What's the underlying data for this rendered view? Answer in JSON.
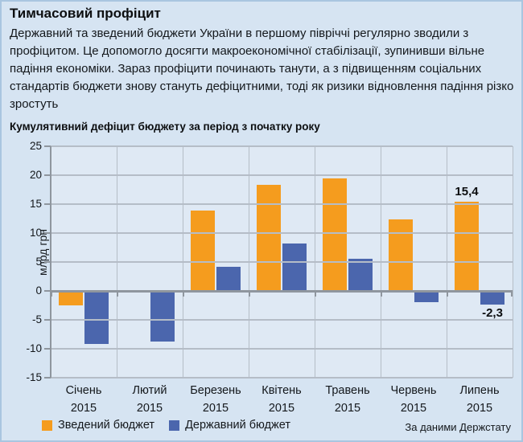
{
  "header": {
    "title": "Тимчасовий профіцит",
    "lede": "Державний та зведений бюджети України в першому півріччі регулярно зводили з профіцитом. Це допомогло досягти макроекономічної стабілізації, зупинивши вільне падіння економіки. Зараз профіцити починають танути, а з підвищенням соціальних стандартів бюджети знову стануть дефіцитними, тоді як ризики відновлення падіння різко зростуть"
  },
  "chart": {
    "title": "Кумулятивний дефіцит бюджету за період з початку року",
    "source": "За даними Держстату"
  },
  "chart_data": {
    "type": "bar",
    "title": "Кумулятивний дефіцит бюджету за період з початку року",
    "xlabel": "",
    "ylabel": "млрд грн",
    "ylim": [
      -15,
      25
    ],
    "yticks": [
      25,
      20,
      15,
      10,
      5,
      0,
      -5,
      -10,
      -15
    ],
    "grid": true,
    "legend_position": "bottom-left",
    "categories": [
      "Січень",
      "Лютий",
      "Березень",
      "Квітень",
      "Травень",
      "Червень",
      "Липень"
    ],
    "category_year": "2015",
    "series": [
      {
        "name": "Зведений бюджет",
        "color": "#F59C1E",
        "values": [
          -2.5,
          0,
          13.9,
          18.4,
          19.4,
          12.3,
          15.4
        ]
      },
      {
        "name": "Державний бюджет",
        "color": "#4B66AD",
        "values": [
          -9.2,
          -8.8,
          4.2,
          8.2,
          5.6,
          -1.9,
          -2.3
        ]
      }
    ],
    "annotations": [
      {
        "text": "15,4",
        "series": 0,
        "index": 6,
        "position": "above"
      },
      {
        "text": "-2,3",
        "series": 1,
        "index": 6,
        "position": "below"
      }
    ]
  }
}
